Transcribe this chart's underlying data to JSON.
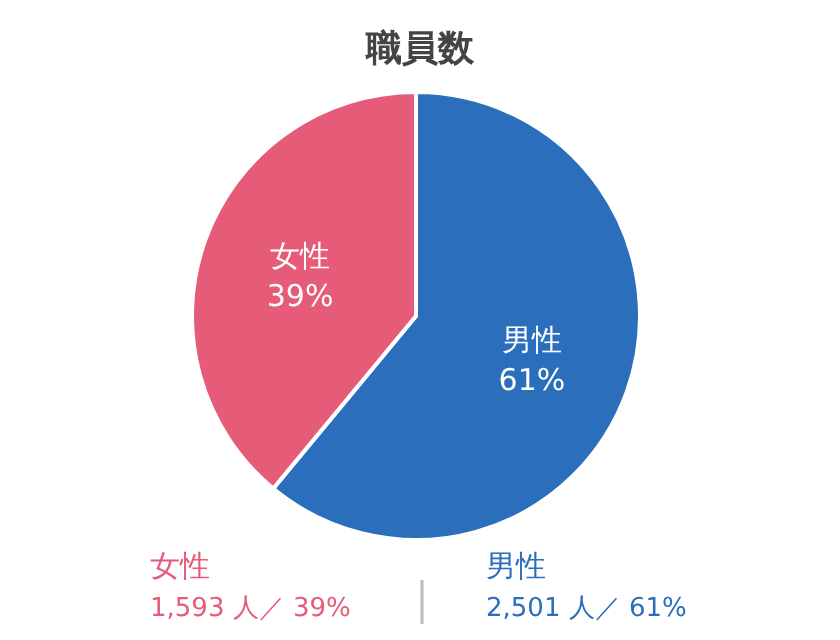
{
  "chart_data": {
    "type": "pie",
    "title": "職員数",
    "categories": [
      "男性",
      "女性"
    ],
    "values": [
      61,
      39
    ],
    "colors": [
      "#2a6ebc",
      "#e65b78"
    ],
    "value_labels": [
      "61%",
      "39%"
    ],
    "annotations": [
      "女性\n1,593 人／ 39%",
      "男性\n2,501 人／ 61%"
    ]
  }
}
